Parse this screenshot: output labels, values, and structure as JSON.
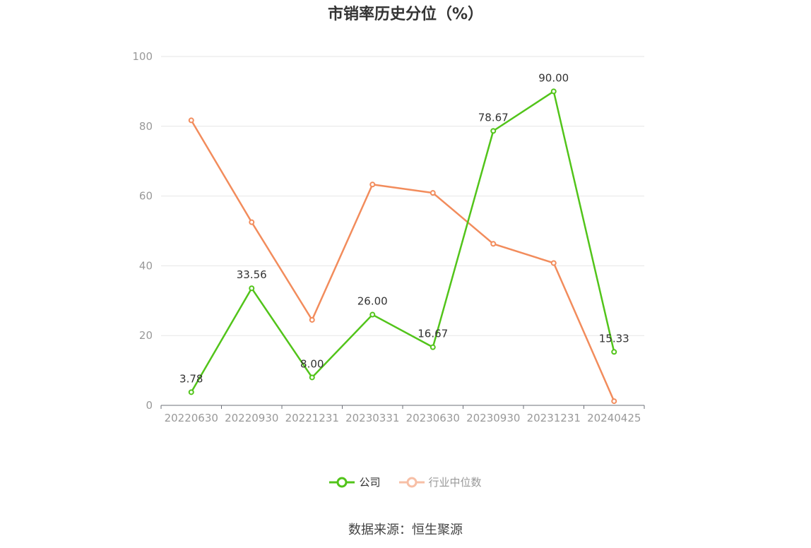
{
  "chart_data": {
    "type": "line",
    "title": "市销率历史分位（%）",
    "categories": [
      "20220630",
      "20220930",
      "20221231",
      "20230331",
      "20230630",
      "20230930",
      "20231231",
      "20240425"
    ],
    "yticks": [
      "0",
      "20",
      "40",
      "60",
      "80",
      "100"
    ],
    "ylim": [
      0,
      100
    ],
    "grid": true,
    "legend_position": "bottom",
    "series": [
      {
        "name": "公司",
        "color": "#52c41a",
        "values": [
          3.78,
          33.56,
          8.0,
          26.0,
          16.67,
          78.67,
          90.0,
          15.33
        ],
        "labels": [
          "3.78",
          "33.56",
          "8.00",
          "26.00",
          "16.67",
          "78.67",
          "90.00",
          "15.33"
        ]
      },
      {
        "name": "行业中位数",
        "color": "#f28c5c",
        "values": [
          81.7,
          52.5,
          24.5,
          63.3,
          60.9,
          46.3,
          40.8,
          1.2
        ]
      }
    ]
  },
  "legend_text_colors": [
    "#333333",
    "#999999"
  ],
  "source": "数据来源：恒生聚源"
}
